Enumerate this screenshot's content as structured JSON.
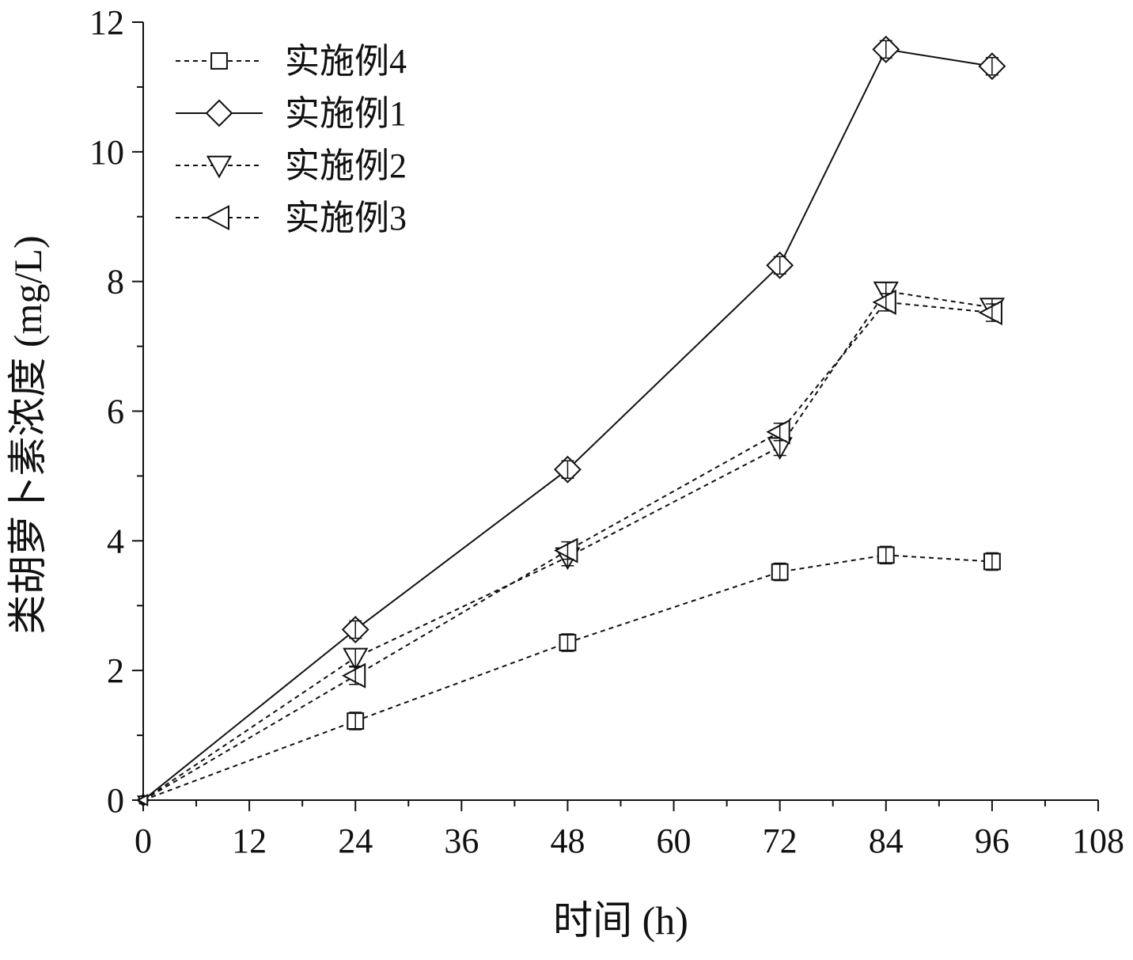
{
  "chart_data": {
    "type": "line",
    "title": "",
    "xlabel": "时间 (h)",
    "ylabel": "类胡萝卜素浓度 (mg/L)",
    "xlim": [
      0,
      108
    ],
    "ylim": [
      0,
      12
    ],
    "xticks": [
      0,
      12,
      24,
      36,
      48,
      60,
      72,
      84,
      96,
      108
    ],
    "yticks": [
      0,
      2,
      4,
      6,
      8,
      10,
      12
    ],
    "grid": false,
    "legend_position": "top-left",
    "x": [
      0,
      24,
      48,
      72,
      84,
      96
    ],
    "series": [
      {
        "name": "实施例4",
        "marker": "square",
        "line_style": "dashed",
        "color": "#111111",
        "values": [
          0,
          1.22,
          2.43,
          3.52,
          3.78,
          3.68
        ]
      },
      {
        "name": "实施例1",
        "marker": "diamond",
        "line_style": "solid",
        "color": "#111111",
        "values": [
          0,
          2.63,
          5.1,
          8.25,
          11.58,
          11.32
        ]
      },
      {
        "name": "实施例2",
        "marker": "triangle-down",
        "line_style": "dashed",
        "color": "#111111",
        "values": [
          0,
          2.2,
          3.75,
          5.45,
          7.85,
          7.6
        ]
      },
      {
        "name": "实施例3",
        "marker": "triangle-left",
        "line_style": "dashed",
        "color": "#111111",
        "values": [
          0,
          1.92,
          3.85,
          5.68,
          7.68,
          7.52
        ]
      }
    ]
  }
}
